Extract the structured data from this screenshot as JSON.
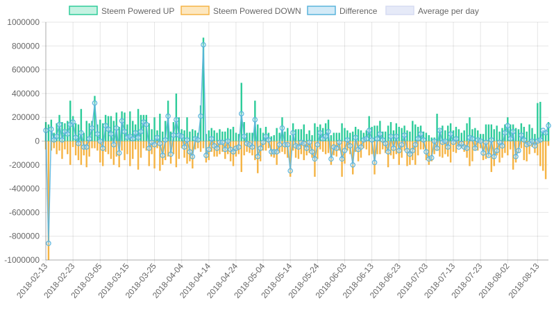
{
  "chart_data": {
    "type": "bar",
    "title": "",
    "xlabel": "",
    "ylabel": "",
    "ylim": [
      -1000000,
      1000000
    ],
    "y_ticks": [
      "1000000",
      "800000",
      "600000",
      "400000",
      "200000",
      "0",
      "-200000",
      "-400000",
      "-600000",
      "-800000",
      "-1000000"
    ],
    "x_tick_labels": [
      "2018-02-13",
      "2018-02-23",
      "2018-03-05",
      "2018-03-15",
      "2018-03-25",
      "2018-04-04",
      "2018-04-14",
      "2018-04-24",
      "2018-05-04",
      "2018-05-14",
      "2018-05-24",
      "2018-06-03",
      "2018-06-13",
      "2018-06-23",
      "2018-07-03",
      "2018-07-13",
      "2018-07-23",
      "2018-08-02",
      "2018-08-13"
    ],
    "start_date": "2018-02-13",
    "grid": true,
    "legend_position": "top",
    "legend": [
      {
        "name": "Steem Powered UP",
        "fill": "#c5f2e2",
        "stroke": "#2ecc9a"
      },
      {
        "name": "Steem Powered DOWN",
        "fill": "#fde7bf",
        "stroke": "#f5b445"
      },
      {
        "name": "Difference",
        "fill": "#d3eaf7",
        "stroke": "#5ab4dc"
      },
      {
        "name": "Average per day",
        "fill": "#e6eaf8",
        "stroke": "#d6dcf2"
      }
    ],
    "series": [
      {
        "name": "Steem Powered UP",
        "color": "#2ecc9a",
        "values": [
          160000,
          140000,
          180000,
          70000,
          150000,
          220000,
          160000,
          150000,
          170000,
          340000,
          210000,
          150000,
          140000,
          270000,
          70000,
          170000,
          150000,
          170000,
          380000,
          140000,
          180000,
          150000,
          220000,
          210000,
          210000,
          170000,
          240000,
          120000,
          250000,
          240000,
          140000,
          250000,
          170000,
          140000,
          270000,
          220000,
          220000,
          220000,
          150000,
          100000,
          200000,
          90000,
          230000,
          80000,
          170000,
          340000,
          80000,
          160000,
          400000,
          200000,
          100000,
          90000,
          200000,
          80000,
          100000,
          90000,
          70000,
          300000,
          870000,
          60000,
          90000,
          110000,
          90000,
          70000,
          100000,
          80000,
          80000,
          110000,
          100000,
          120000,
          70000,
          60000,
          490000,
          160000,
          70000,
          70000,
          70000,
          340000,
          140000,
          110000,
          70000,
          120000,
          70000,
          40000,
          50000,
          110000,
          70000,
          200000,
          80000,
          110000,
          50000,
          150000,
          100000,
          100000,
          100000,
          140000,
          60000,
          90000,
          50000,
          150000,
          120000,
          140000,
          110000,
          150000,
          180000,
          50000,
          70000,
          70000,
          70000,
          150000,
          110000,
          90000,
          70000,
          80000,
          120000,
          100000,
          90000,
          70000,
          90000,
          210000,
          120000,
          130000,
          130000,
          170000,
          80000,
          80000,
          130000,
          160000,
          90000,
          150000,
          120000,
          110000,
          130000,
          90000,
          80000,
          170000,
          140000,
          120000,
          130000,
          80000,
          70000,
          50000,
          30000,
          30000,
          230000,
          100000,
          130000,
          90000,
          130000,
          150000,
          90000,
          120000,
          100000,
          70000,
          90000,
          150000,
          200000,
          100000,
          110000,
          90000,
          60000,
          60000,
          140000,
          140000,
          140000,
          100000,
          130000,
          80000,
          110000,
          140000,
          200000,
          140000,
          140000,
          110000,
          100000,
          150000,
          120000,
          80000,
          140000,
          110000,
          60000,
          320000,
          330000,
          70000,
          90000,
          160000
        ]
      },
      {
        "name": "Steem Powered DOWN",
        "color": "#f5b445",
        "values": [
          -70000,
          -1000000,
          -80000,
          -60000,
          -110000,
          -80000,
          -150000,
          -70000,
          -110000,
          -200000,
          -50000,
          -120000,
          -160000,
          -200000,
          -120000,
          -220000,
          -130000,
          -60000,
          -60000,
          -80000,
          -180000,
          -210000,
          -90000,
          -110000,
          -150000,
          -200000,
          -130000,
          -220000,
          -80000,
          -160000,
          -110000,
          -210000,
          -150000,
          -70000,
          -240000,
          -140000,
          -60000,
          -80000,
          -210000,
          -110000,
          -230000,
          -60000,
          -250000,
          -200000,
          -160000,
          -130000,
          -190000,
          -110000,
          -220000,
          -150000,
          -60000,
          -140000,
          -190000,
          -170000,
          -230000,
          -70000,
          -60000,
          -90000,
          -60000,
          -180000,
          -160000,
          -90000,
          -130000,
          -130000,
          -110000,
          -90000,
          -150000,
          -110000,
          -170000,
          -210000,
          -130000,
          -110000,
          -260000,
          -120000,
          -90000,
          -100000,
          -120000,
          -160000,
          -270000,
          -170000,
          -80000,
          -80000,
          -60000,
          -130000,
          -140000,
          -200000,
          -100000,
          -90000,
          -110000,
          -140000,
          -300000,
          -80000,
          -140000,
          -150000,
          -110000,
          -160000,
          -120000,
          -100000,
          -140000,
          -300000,
          -150000,
          -70000,
          -90000,
          -110000,
          -100000,
          -200000,
          -120000,
          -130000,
          -80000,
          -300000,
          -190000,
          -80000,
          -110000,
          -280000,
          -90000,
          -170000,
          -140000,
          -60000,
          -70000,
          -120000,
          -110000,
          -280000,
          -110000,
          -110000,
          -70000,
          -100000,
          -220000,
          -120000,
          -150000,
          -110000,
          -200000,
          -140000,
          -80000,
          -210000,
          -200000,
          -160000,
          -200000,
          -120000,
          -70000,
          -70000,
          -160000,
          -200000,
          -170000,
          -110000,
          -80000,
          -130000,
          -140000,
          -110000,
          -130000,
          -180000,
          -90000,
          -100000,
          -50000,
          -60000,
          -90000,
          -140000,
          -210000,
          -170000,
          -80000,
          -80000,
          -60000,
          -160000,
          -150000,
          -130000,
          -260000,
          -210000,
          -120000,
          -180000,
          -140000,
          -100000,
          -120000,
          -70000,
          -240000,
          -180000,
          -100000,
          -60000,
          -160000,
          -170000,
          -110000,
          -50000,
          -100000,
          -120000,
          -210000,
          -250000,
          -320000,
          -40000,
          -120000,
          -90000
        ]
      },
      {
        "name": "Difference",
        "color": "#5ab4dc",
        "values": [
          90000,
          -860000,
          100000,
          10000,
          40000,
          140000,
          10000,
          80000,
          60000,
          140000,
          160000,
          30000,
          -20000,
          70000,
          -50000,
          -50000,
          20000,
          110000,
          320000,
          60000,
          0,
          -60000,
          130000,
          100000,
          60000,
          -30000,
          110000,
          -100000,
          170000,
          80000,
          30000,
          40000,
          20000,
          70000,
          30000,
          80000,
          160000,
          140000,
          -60000,
          -10000,
          -30000,
          30000,
          -20000,
          -120000,
          10000,
          210000,
          -110000,
          50000,
          180000,
          50000,
          40000,
          -50000,
          10000,
          -90000,
          -130000,
          20000,
          10000,
          210000,
          810000,
          -120000,
          -70000,
          20000,
          -40000,
          -60000,
          -10000,
          -10000,
          -70000,
          0,
          -70000,
          -90000,
          -60000,
          -50000,
          230000,
          40000,
          -20000,
          -30000,
          -50000,
          180000,
          -130000,
          -60000,
          -10000,
          40000,
          10000,
          -90000,
          -90000,
          -90000,
          -30000,
          110000,
          -30000,
          -30000,
          -250000,
          70000,
          -40000,
          -50000,
          -10000,
          -20000,
          -60000,
          -10000,
          -90000,
          -150000,
          -30000,
          70000,
          20000,
          40000,
          80000,
          -150000,
          -50000,
          -60000,
          -10000,
          -150000,
          -80000,
          10000,
          -40000,
          -200000,
          30000,
          -70000,
          -50000,
          10000,
          20000,
          90000,
          10000,
          -180000,
          20000,
          60000,
          10000,
          -20000,
          -90000,
          40000,
          -60000,
          40000,
          -80000,
          -30000,
          50000,
          -80000,
          -110000,
          -80000,
          -30000,
          20000,
          60000,
          10000,
          -90000,
          -150000,
          -140000,
          0,
          -60000,
          90000,
          -10000,
          0,
          -50000,
          60000,
          -10000,
          20000,
          -50000,
          -20000,
          -50000,
          -60000,
          30000,
          20000,
          -60000,
          10000,
          0,
          -100000,
          -10000,
          -120000,
          10000,
          -130000,
          -80000,
          -10000,
          -40000,
          70000,
          130000,
          20000,
          80000,
          -130000,
          -80000,
          50000,
          10000,
          -30000,
          -20000,
          0,
          -40000,
          0,
          10000,
          90000,
          70000,
          130000,
          -60000,
          -110000,
          70000
        ]
      }
    ]
  }
}
